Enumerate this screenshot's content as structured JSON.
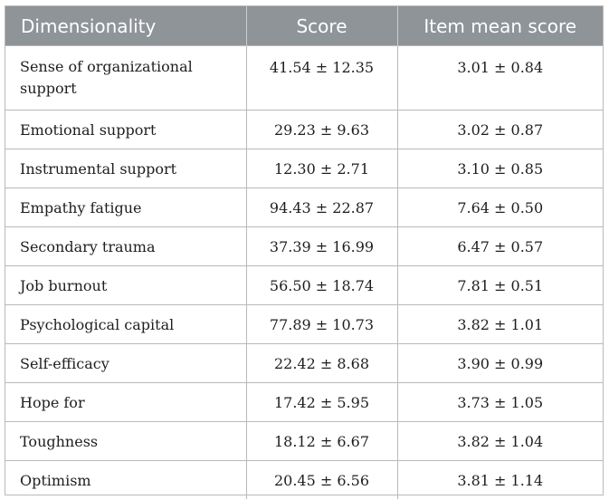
{
  "table": {
    "headers": [
      "Dimensionality",
      "Score",
      "Item mean score"
    ],
    "rows": [
      {
        "dimension": "Sense of organizational support",
        "score": "41.54 ± 12.35",
        "item_mean": "3.01 ± 0.84"
      },
      {
        "dimension": "Emotional support",
        "score": "29.23 ± 9.63",
        "item_mean": "3.02 ± 0.87"
      },
      {
        "dimension": "Instrumental support",
        "score": "12.30 ± 2.71",
        "item_mean": "3.10 ± 0.85"
      },
      {
        "dimension": "Empathy fatigue",
        "score": "94.43 ± 22.87",
        "item_mean": "7.64 ± 0.50"
      },
      {
        "dimension": "Secondary trauma",
        "score": "37.39 ± 16.99",
        "item_mean": "6.47 ± 0.57"
      },
      {
        "dimension": "Job burnout",
        "score": "56.50 ± 18.74",
        "item_mean": "7.81 ± 0.51"
      },
      {
        "dimension": "Psychological capital",
        "score": "77.89 ± 10.73",
        "item_mean": "3.82 ± 1.01"
      },
      {
        "dimension": "Self-efficacy",
        "score": "22.42 ± 8.68",
        "item_mean": "3.90 ± 0.99"
      },
      {
        "dimension": "Hope for",
        "score": "17.42 ± 5.95",
        "item_mean": "3.73 ± 1.05"
      },
      {
        "dimension": "Toughness",
        "score": "18.12 ± 6.67",
        "item_mean": "3.82 ± 1.04"
      },
      {
        "dimension": "Optimism",
        "score": "20.45 ± 6.56",
        "item_mean": "3.81 ± 1.14"
      }
    ]
  },
  "colors": {
    "header_background": "#8f9499",
    "header_text": "#ffffff",
    "border": "#b9b9b9",
    "body_text": "#1e1e1e"
  }
}
